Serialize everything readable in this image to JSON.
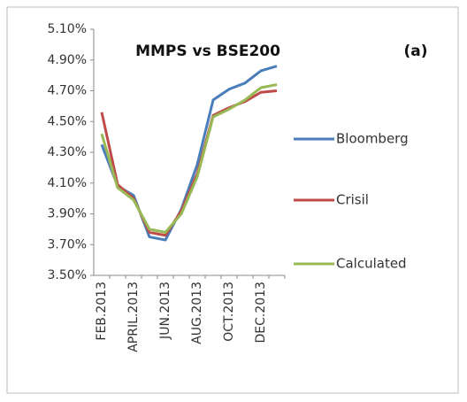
{
  "chart_data": {
    "type": "line",
    "title": "MMPS vs BSE200",
    "annotation": "(a)",
    "categories": [
      "FEB.2013",
      null,
      "APRIL.2013",
      null,
      "JUN.2013",
      null,
      "AUG.2013",
      null,
      "OCT.2013",
      null,
      "DEC.2013",
      null
    ],
    "series": [
      {
        "name": "Bloomberg",
        "color": "#4a7ebb",
        "values": [
          4.35,
          4.08,
          4.02,
          3.75,
          3.73,
          3.93,
          4.22,
          4.64,
          4.71,
          4.75,
          4.83,
          4.86
        ]
      },
      {
        "name": "Crisil",
        "color": "#be4b48",
        "values": [
          4.56,
          4.09,
          4.0,
          3.78,
          3.76,
          3.92,
          4.16,
          4.54,
          4.59,
          4.63,
          4.69,
          4.7
        ]
      },
      {
        "name": "Calculated",
        "color": "#98b954",
        "values": [
          4.42,
          4.07,
          3.99,
          3.8,
          3.78,
          3.9,
          4.14,
          4.53,
          4.58,
          4.64,
          4.72,
          4.74
        ]
      }
    ],
    "ylim": [
      3.5,
      5.1
    ],
    "yticks": [
      {
        "value": 3.5,
        "label": "3.50%"
      },
      {
        "value": 3.7,
        "label": "3.70%"
      },
      {
        "value": 3.9,
        "label": "3.90%"
      },
      {
        "value": 4.1,
        "label": "4.10%"
      },
      {
        "value": 4.3,
        "label": "4.30%"
      },
      {
        "value": 4.5,
        "label": "4.50%"
      },
      {
        "value": 4.7,
        "label": "4.70%"
      },
      {
        "value": 4.9,
        "label": "4.90%"
      },
      {
        "value": 5.1,
        "label": "5.10%"
      }
    ],
    "grid": false,
    "legend": "right"
  }
}
